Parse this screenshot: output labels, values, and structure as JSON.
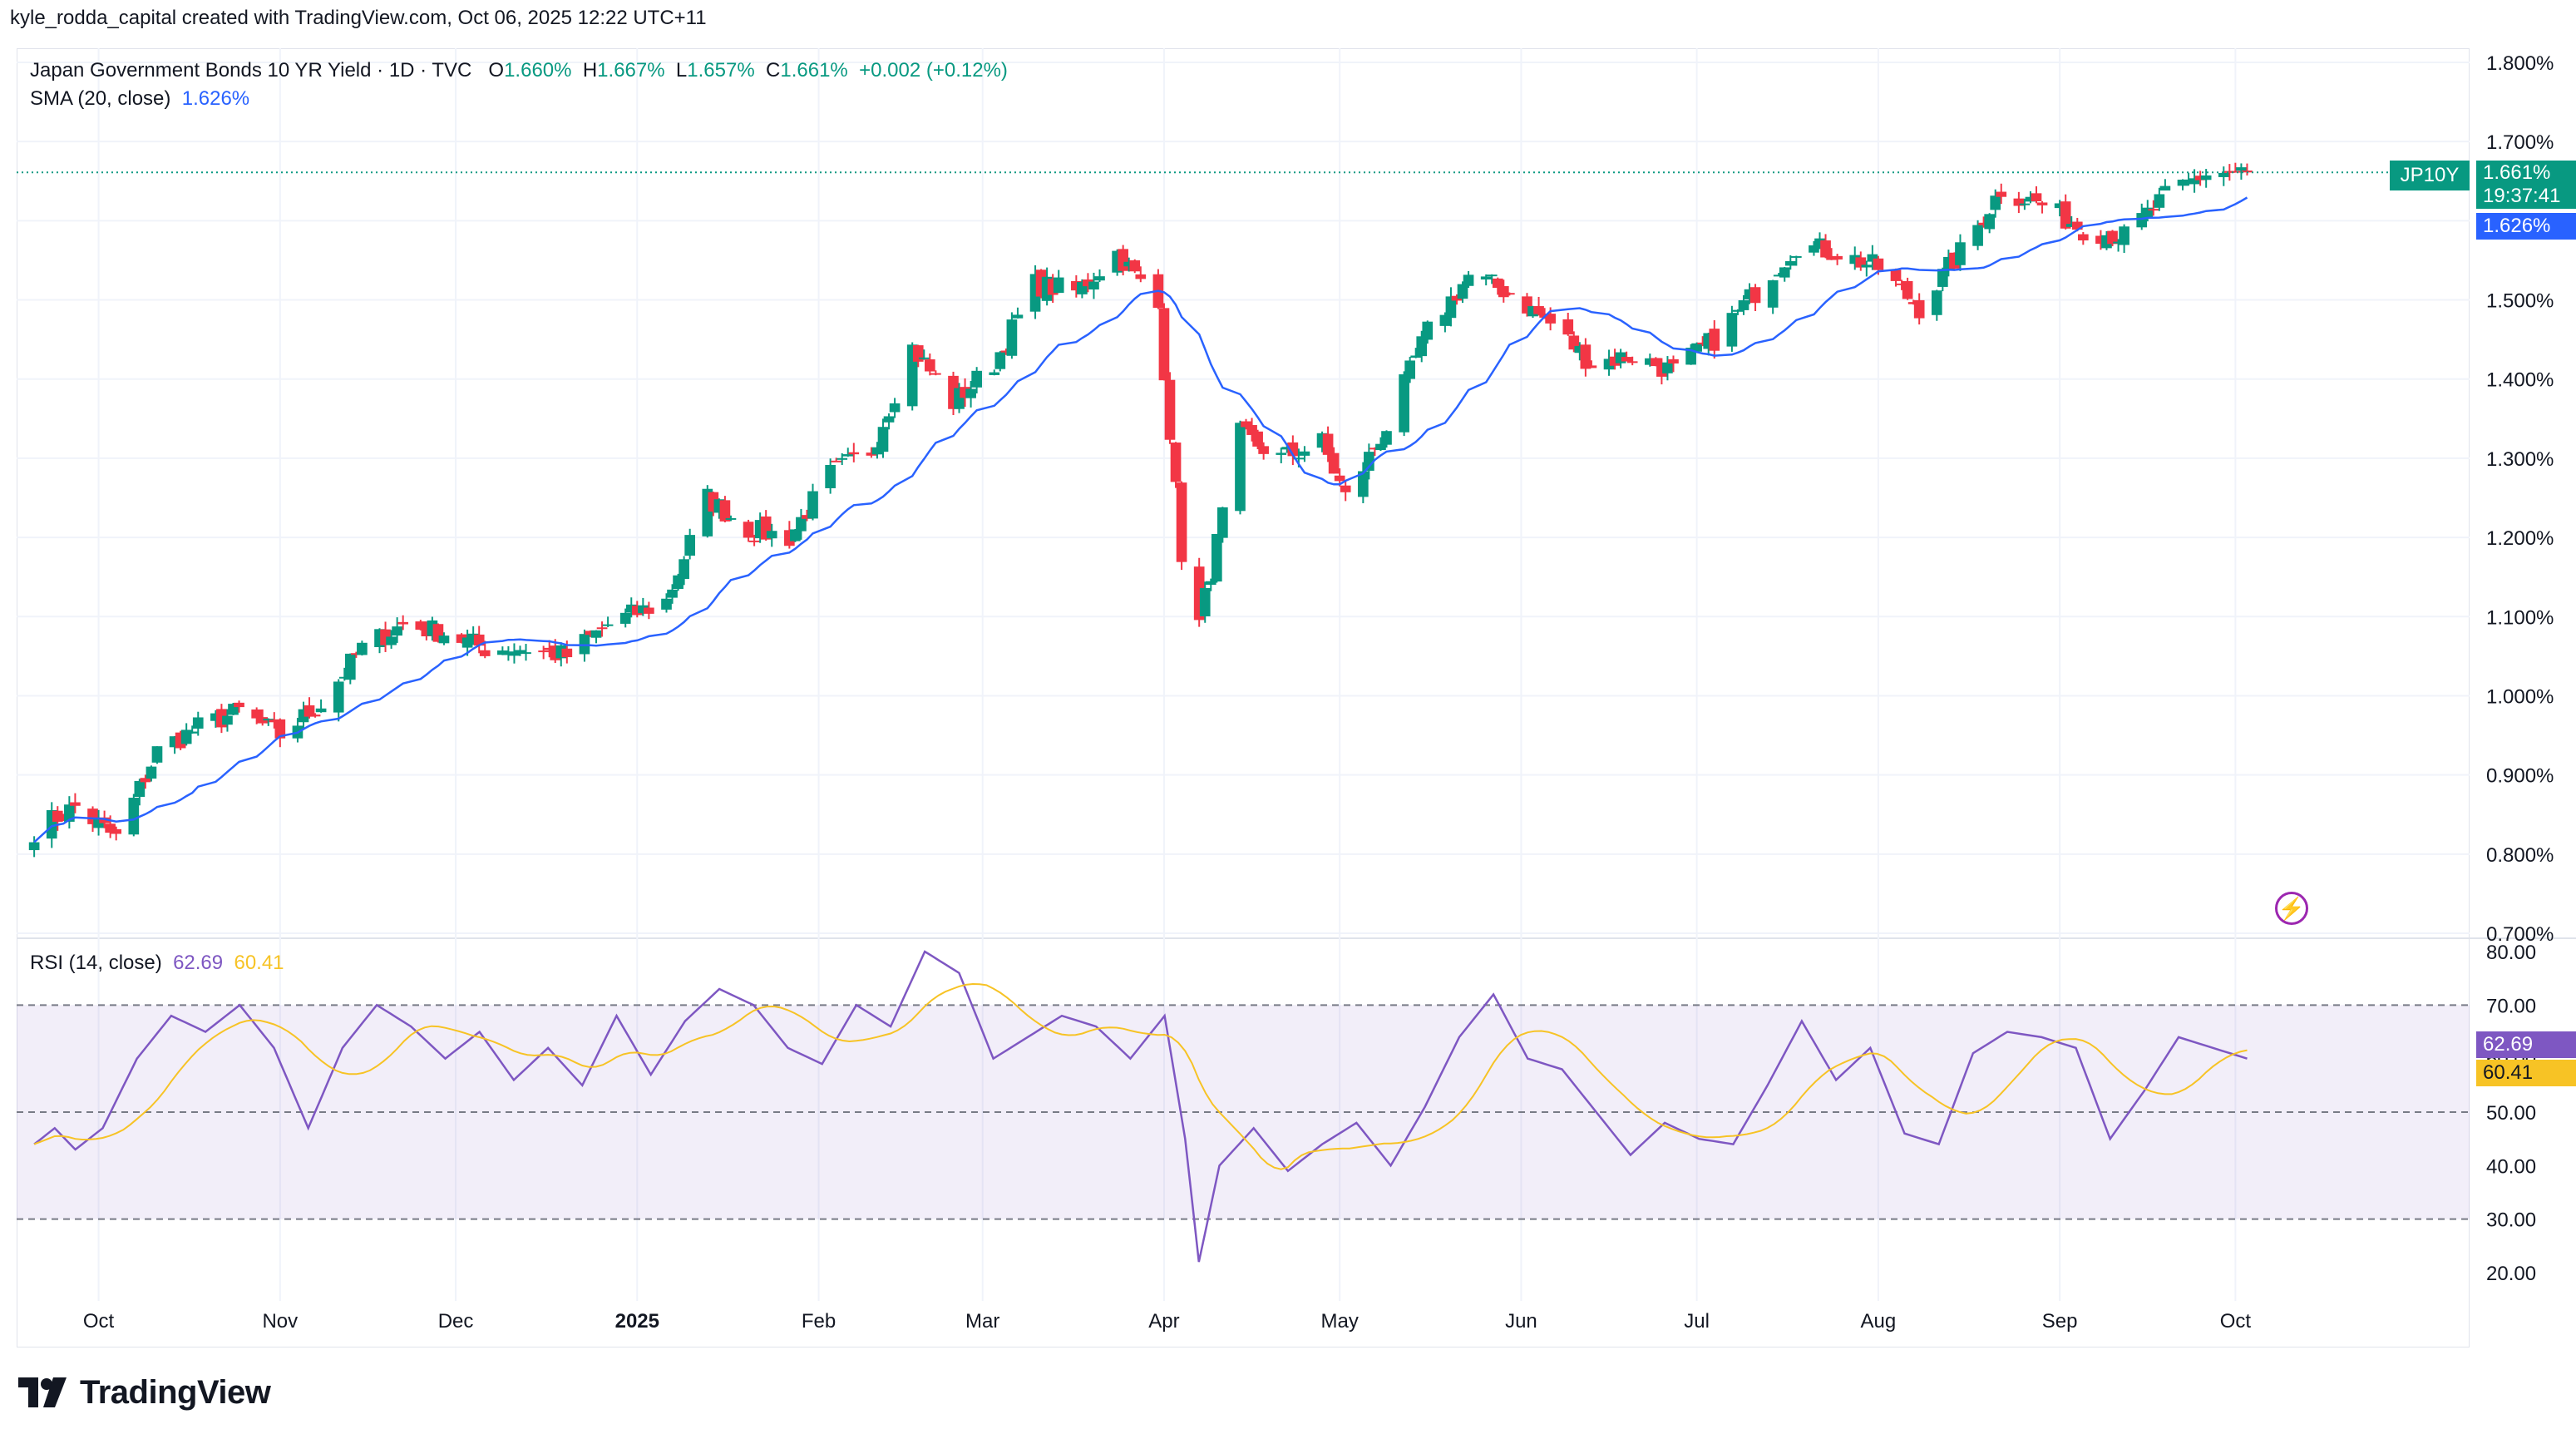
{
  "header": {
    "credit": "kyle_rodda_capital created with TradingView.com, Oct 06, 2025 12:22 UTC+11"
  },
  "legend": {
    "symbol": "Japan Government Bonds 10 YR Yield · 1D · TVC",
    "o_label": "O",
    "o": "1.660%",
    "h_label": "H",
    "h": "1.667%",
    "l_label": "L",
    "l": "1.657%",
    "c_label": "C",
    "c": "1.661%",
    "change": "+0.002 (+0.12%)",
    "sma_label": "SMA (20, close)",
    "sma_value": "1.626%",
    "rsi_label": "RSI (14, close)",
    "rsi_value": "62.69",
    "rsi_ma_value": "60.41"
  },
  "price_tags": {
    "symbol": "JP10Y",
    "last": "1.661%",
    "countdown": "19:37:41",
    "sma": "1.626%",
    "rsi": "62.69",
    "rsi_ma": "60.41"
  },
  "colors": {
    "up": "#089981",
    "down": "#f23645",
    "sma": "#2962ff",
    "rsi": "#7e57c2",
    "rsi_ma": "#f7c325",
    "rsi_band": "#7e57c2",
    "grid": "#f0f3fa",
    "text": "#131722"
  },
  "branding": {
    "logo_text": "TradingView"
  },
  "chart_data": [
    {
      "type": "candlestick",
      "title": "Japan Government Bonds 10 YR Yield · 1D · TVC",
      "ylim": [
        0.7,
        1.8
      ],
      "y_ticks": [
        "1.800%",
        "1.700%",
        "1.600%",
        "1.500%",
        "1.400%",
        "1.300%",
        "1.200%",
        "1.100%",
        "1.000%",
        "0.900%",
        "0.800%",
        "0.700%"
      ],
      "x_ticks": [
        "Oct",
        "Nov",
        "Dec",
        "2025",
        "Feb",
        "Mar",
        "Apr",
        "May",
        "Jun",
        "Jul",
        "Aug",
        "Sep",
        "Oct"
      ],
      "grid": true,
      "close_anchors": [
        [
          "2024-09-20",
          0.83
        ],
        [
          "2024-09-27",
          0.86
        ],
        [
          "2024-10-04",
          0.82
        ],
        [
          "2024-10-11",
          0.93
        ],
        [
          "2024-10-18",
          0.96
        ],
        [
          "2024-10-25",
          0.98
        ],
        [
          "2024-11-01",
          0.95
        ],
        [
          "2024-11-08",
          0.99
        ],
        [
          "2024-11-15",
          1.06
        ],
        [
          "2024-11-22",
          1.09
        ],
        [
          "2024-11-29",
          1.08
        ],
        [
          "2024-12-06",
          1.06
        ],
        [
          "2024-12-13",
          1.06
        ],
        [
          "2024-12-20",
          1.05
        ],
        [
          "2024-12-27",
          1.09
        ],
        [
          "2025-01-06",
          1.12
        ],
        [
          "2025-01-13",
          1.25
        ],
        [
          "2025-01-20",
          1.21
        ],
        [
          "2025-01-27",
          1.2
        ],
        [
          "2025-02-03",
          1.28
        ],
        [
          "2025-02-10",
          1.31
        ],
        [
          "2025-02-17",
          1.44
        ],
        [
          "2025-02-24",
          1.37
        ],
        [
          "2025-03-03",
          1.42
        ],
        [
          "2025-03-10",
          1.52
        ],
        [
          "2025-03-17",
          1.51
        ],
        [
          "2025-03-24",
          1.56
        ],
        [
          "2025-03-31",
          1.49
        ],
        [
          "2025-04-04",
          1.18
        ],
        [
          "2025-04-07",
          1.09
        ],
        [
          "2025-04-14",
          1.33
        ],
        [
          "2025-04-21",
          1.3
        ],
        [
          "2025-04-28",
          1.32
        ],
        [
          "2025-05-02",
          1.25
        ],
        [
          "2025-05-09",
          1.34
        ],
        [
          "2025-05-16",
          1.46
        ],
        [
          "2025-05-23",
          1.53
        ],
        [
          "2025-05-30",
          1.51
        ],
        [
          "2025-06-06",
          1.47
        ],
        [
          "2025-06-13",
          1.42
        ],
        [
          "2025-06-20",
          1.43
        ],
        [
          "2025-06-27",
          1.41
        ],
        [
          "2025-07-04",
          1.45
        ],
        [
          "2025-07-11",
          1.51
        ],
        [
          "2025-07-18",
          1.57
        ],
        [
          "2025-07-25",
          1.56
        ],
        [
          "2025-08-01",
          1.54
        ],
        [
          "2025-08-08",
          1.49
        ],
        [
          "2025-08-15",
          1.56
        ],
        [
          "2025-08-22",
          1.64
        ],
        [
          "2025-08-29",
          1.62
        ],
        [
          "2025-09-05",
          1.59
        ],
        [
          "2025-09-12",
          1.58
        ],
        [
          "2025-09-19",
          1.63
        ],
        [
          "2025-09-26",
          1.66
        ],
        [
          "2025-10-03",
          1.661
        ]
      ],
      "last": {
        "open": 1.66,
        "high": 1.667,
        "low": 1.657,
        "close": 1.661
      },
      "series": [
        {
          "name": "SMA (20, close)",
          "last": 1.626
        }
      ]
    },
    {
      "type": "line",
      "title": "RSI (14, close)",
      "ylim": [
        15,
        80
      ],
      "y_ticks": [
        "80.00",
        "70.00",
        "60.00",
        "50.00",
        "40.00",
        "30.00",
        "20.00"
      ],
      "bands": [
        30,
        50,
        70
      ],
      "rsi_anchors": [
        [
          0,
          44
        ],
        [
          3,
          47
        ],
        [
          6,
          43
        ],
        [
          10,
          47
        ],
        [
          15,
          60
        ],
        [
          20,
          68
        ],
        [
          25,
          65
        ],
        [
          30,
          70
        ],
        [
          35,
          62
        ],
        [
          40,
          47
        ],
        [
          45,
          62
        ],
        [
          50,
          70
        ],
        [
          55,
          66
        ],
        [
          60,
          60
        ],
        [
          65,
          65
        ],
        [
          70,
          56
        ],
        [
          75,
          62
        ],
        [
          80,
          55
        ],
        [
          85,
          68
        ],
        [
          90,
          57
        ],
        [
          95,
          67
        ],
        [
          100,
          73
        ],
        [
          105,
          70
        ],
        [
          110,
          62
        ],
        [
          115,
          59
        ],
        [
          120,
          70
        ],
        [
          125,
          66
        ],
        [
          130,
          80
        ],
        [
          135,
          76
        ],
        [
          140,
          60
        ],
        [
          145,
          64
        ],
        [
          150,
          68
        ],
        [
          155,
          66
        ],
        [
          160,
          60
        ],
        [
          165,
          68
        ],
        [
          168,
          45
        ],
        [
          170,
          22
        ],
        [
          173,
          40
        ],
        [
          178,
          47
        ],
        [
          183,
          39
        ],
        [
          188,
          44
        ],
        [
          193,
          48
        ],
        [
          198,
          40
        ],
        [
          203,
          51
        ],
        [
          208,
          64
        ],
        [
          213,
          72
        ],
        [
          218,
          60
        ],
        [
          223,
          58
        ],
        [
          228,
          50
        ],
        [
          233,
          42
        ],
        [
          238,
          48
        ],
        [
          243,
          45
        ],
        [
          248,
          44
        ],
        [
          253,
          55
        ],
        [
          258,
          67
        ],
        [
          263,
          56
        ],
        [
          268,
          62
        ],
        [
          273,
          46
        ],
        [
          278,
          44
        ],
        [
          283,
          61
        ],
        [
          288,
          65
        ],
        [
          293,
          64
        ],
        [
          298,
          62
        ],
        [
          303,
          45
        ],
        [
          308,
          54
        ],
        [
          313,
          64
        ],
        [
          318,
          62
        ],
        [
          323,
          60
        ]
      ],
      "series": [
        {
          "name": "RSI",
          "last": 62.69
        },
        {
          "name": "RSI-based MA",
          "last": 60.41
        }
      ]
    }
  ]
}
